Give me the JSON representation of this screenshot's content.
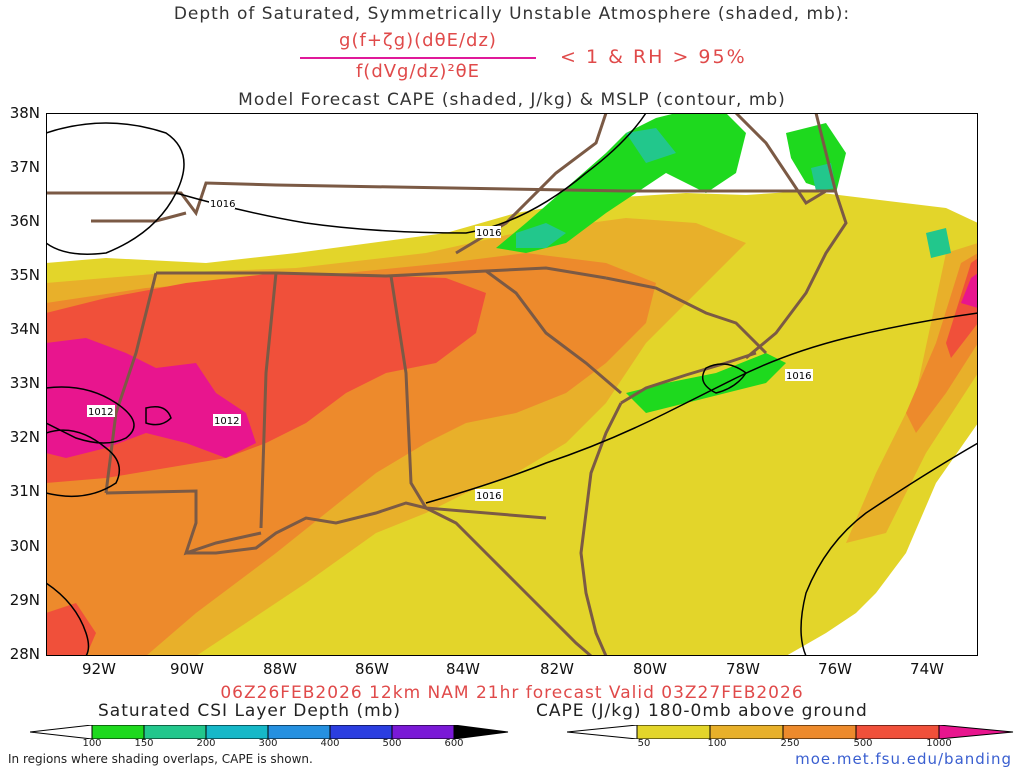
{
  "header": {
    "title_line1": "Depth of Saturated, Symmetrically Unstable Atmosphere (shaded, mb):",
    "formula_numerator": "g(f+ζg)(dθE/dz)",
    "formula_denominator": "f(dVg/dz)²θE",
    "formula_condition": "< 1 & RH > 95%",
    "title_line2": "Model Forecast CAPE (shaded, J/kg) & MSLP (contour, mb)"
  },
  "map": {
    "lat_labels": [
      "38N",
      "37N",
      "36N",
      "35N",
      "34N",
      "33N",
      "32N",
      "31N",
      "30N",
      "29N",
      "28N"
    ],
    "lon_labels": [
      "92W",
      "90W",
      "88W",
      "86W",
      "84W",
      "82W",
      "80W",
      "78W",
      "76W",
      "74W"
    ],
    "isobar_labels": [
      "1016",
      "1016",
      "1012",
      "1012",
      "1016",
      "1016"
    ],
    "colors": {
      "land_border": "#7b5a45",
      "isobar": "#000000"
    }
  },
  "footer": {
    "valid_text": "06Z26FEB2026 12km NAM 21hr forecast Valid 03Z27FEB2026",
    "csi_title": "Saturated CSI Layer Depth (mb)",
    "cape_title": "CAPE (J/kg) 180-0mb above ground",
    "csi_ticks": [
      "100",
      "150",
      "200",
      "300",
      "400",
      "500",
      "600"
    ],
    "cape_ticks": [
      "50",
      "100",
      "250",
      "500",
      "1000"
    ],
    "note": "In regions where shading overlaps, CAPE is shown.",
    "source": "moe.met.fsu.edu/banding"
  },
  "colorbars": {
    "csi_colors": [
      "#ffffff",
      "#1ed91e",
      "#22c78c",
      "#16b8c8",
      "#2590e0",
      "#2b3ee0",
      "#7a19d6",
      "#000000"
    ],
    "cape_colors": [
      "#ffffff",
      "#e3d52a",
      "#e8b02a",
      "#ed8a2c",
      "#f0503a",
      "#e8158e"
    ]
  }
}
